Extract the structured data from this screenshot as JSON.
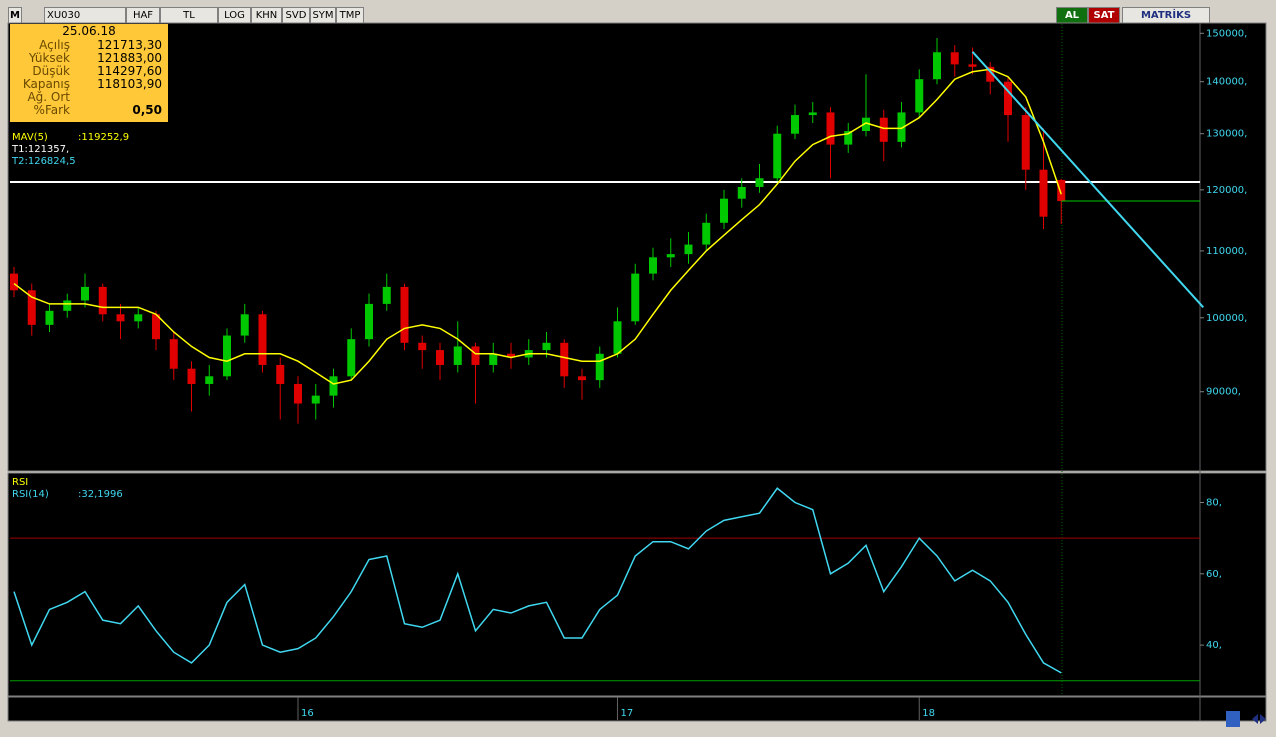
{
  "toolbar": {
    "logo": "M",
    "symbol": "XU030",
    "buttons": [
      "HAF",
      "TL",
      "LOG",
      "KHN",
      "SVD",
      "SYM",
      "TMP"
    ],
    "buy": "AL",
    "sell": "SAT",
    "brand": "MATRİKS"
  },
  "info_box": {
    "date": "25.06.18",
    "rows": [
      {
        "label": "Açılış",
        "value": "121713,30"
      },
      {
        "label": "Yüksek",
        "value": "121883,00"
      },
      {
        "label": "Düşük",
        "value": "114297,60"
      },
      {
        "label": "Kapanış",
        "value": "118103,90"
      },
      {
        "label": "Ağ. Ort"
      },
      {
        "label": "%Fark",
        "value": "0,50"
      }
    ]
  },
  "chart_data": [
    {
      "type": "candlestick",
      "log_scale": true,
      "ylim": [
        80500,
        152000
      ],
      "yticks": [
        {
          "value": 90000,
          "label": "90000,"
        },
        {
          "value": 100000,
          "label": "100000,"
        },
        {
          "value": 110000,
          "label": "110000,"
        },
        {
          "value": 120000,
          "label": "120000,"
        },
        {
          "value": 130000,
          "label": "130000,"
        },
        {
          "value": 140000,
          "label": "140000,"
        },
        {
          "value": 150000,
          "label": "150000,"
        }
      ],
      "categories": [
        null,
        null,
        null,
        null,
        null,
        null,
        null,
        null,
        null,
        null,
        null,
        null,
        null,
        null,
        null,
        null,
        "16",
        null,
        null,
        null,
        null,
        null,
        null,
        null,
        null,
        null,
        null,
        null,
        null,
        null,
        null,
        null,
        null,
        null,
        "17",
        null,
        null,
        null,
        null,
        null,
        null,
        null,
        null,
        null,
        null,
        null,
        null,
        null,
        null,
        null,
        null,
        "18",
        null,
        null,
        null,
        null,
        null,
        null,
        null,
        null
      ],
      "open": [
        106500,
        104000,
        99000,
        101000,
        102500,
        104500,
        100500,
        99500,
        100500,
        97000,
        93000,
        91000,
        92000,
        97500,
        100500,
        93500,
        91000,
        88500,
        89500,
        92000,
        97000,
        102000,
        104500,
        96500,
        95500,
        93500,
        96000,
        93500,
        95000,
        94500,
        95500,
        96500,
        92000,
        91500,
        95000,
        99500,
        106500,
        109000,
        109500,
        111000,
        114500,
        118500,
        120500,
        122000,
        130000,
        133500,
        134000,
        128000,
        130500,
        133000,
        128500,
        134000,
        140500,
        146000,
        143500,
        143000,
        140000,
        133500,
        123500,
        121713.3
      ],
      "high": [
        107500,
        105000,
        102000,
        103500,
        106500,
        105000,
        102000,
        101500,
        101000,
        98000,
        94000,
        93500,
        98500,
        102000,
        101000,
        94500,
        92000,
        91000,
        93000,
        98500,
        103500,
        106500,
        105000,
        97500,
        96500,
        99500,
        96500,
        96500,
        96500,
        97000,
        98000,
        97000,
        93000,
        96000,
        101500,
        108000,
        110500,
        112000,
        113000,
        116000,
        120000,
        122000,
        124500,
        131500,
        135500,
        136000,
        135000,
        132000,
        141500,
        134500,
        136000,
        142500,
        149000,
        147500,
        147000,
        144000,
        141000,
        135000,
        131000,
        121883
      ],
      "low": [
        103000,
        97500,
        98000,
        100000,
        101500,
        99500,
        97000,
        98500,
        95500,
        91500,
        87500,
        89500,
        91500,
        96500,
        92500,
        86500,
        86000,
        86500,
        88000,
        91500,
        96000,
        101000,
        95500,
        93000,
        91500,
        92500,
        88500,
        92500,
        93000,
        93500,
        94500,
        90500,
        89000,
        90500,
        94500,
        99000,
        105500,
        107500,
        108000,
        110000,
        113500,
        117000,
        119500,
        121500,
        129000,
        132000,
        122000,
        126500,
        129500,
        125000,
        127500,
        133000,
        139500,
        141000,
        141500,
        137500,
        128500,
        120000,
        113500,
        114297.6
      ],
      "close": [
        104000,
        99000,
        101000,
        102500,
        104500,
        100500,
        99500,
        100500,
        97000,
        93000,
        91000,
        92000,
        97500,
        100500,
        93500,
        91000,
        88500,
        89500,
        92000,
        97000,
        102000,
        104500,
        96500,
        95500,
        93500,
        96000,
        93500,
        95000,
        94500,
        95500,
        96500,
        92000,
        91500,
        95000,
        99500,
        106500,
        109000,
        109500,
        111000,
        114500,
        118500,
        120500,
        122000,
        130000,
        133500,
        134000,
        128000,
        130500,
        133000,
        128500,
        134000,
        140500,
        146000,
        143500,
        143000,
        140000,
        133500,
        123500,
        115500,
        118103.9
      ],
      "up_color": "#00c800",
      "down_color": "#e00000",
      "series": [
        {
          "name": "MAV(5)",
          "readout": ":119252,9",
          "color": "#ffff00",
          "values": [
            105000,
            103000,
            102000,
            102000,
            102000,
            101500,
            101500,
            101500,
            100500,
            98000,
            96000,
            94500,
            94000,
            95000,
            95000,
            95000,
            94000,
            92500,
            91000,
            91500,
            94000,
            97000,
            98500,
            99000,
            98500,
            97000,
            95000,
            95000,
            94500,
            95000,
            95000,
            94500,
            94000,
            94000,
            95000,
            97000,
            100500,
            104000,
            107000,
            110000,
            112500,
            115000,
            117500,
            121000,
            125000,
            128000,
            129500,
            130000,
            132000,
            131000,
            131000,
            133000,
            136500,
            140500,
            142000,
            142500,
            141000,
            137000,
            128500,
            119252.9
          ]
        }
      ],
      "hlines": [
        {
          "name": "T1:121357,",
          "value": 121357,
          "color": "#ffffff"
        }
      ],
      "trendline": {
        "name": "T2:126824,5",
        "color": "#40d8f0",
        "x": [
          54,
          67
        ],
        "values": [
          146100,
          101500
        ]
      }
    },
    {
      "type": "line",
      "title": "RSI",
      "ylim": [
        26,
        88
      ],
      "yticks": [
        {
          "value": 40,
          "label": "40,"
        },
        {
          "value": 60,
          "label": "60,"
        },
        {
          "value": 80,
          "label": "80,"
        }
      ],
      "series": [
        {
          "name": "RSI(14)",
          "readout": ":32,1996",
          "color": "#40d8f0",
          "values": [
            55,
            40,
            50,
            52,
            55,
            47,
            46,
            51,
            44,
            38,
            35,
            40,
            52,
            57,
            40,
            38,
            39,
            42,
            48,
            55,
            64,
            65,
            46,
            45,
            47,
            60,
            44,
            50,
            49,
            51,
            52,
            42,
            42,
            50,
            54,
            65,
            69,
            69,
            67,
            72,
            75,
            76,
            77,
            84,
            80,
            78,
            60,
            63,
            68,
            55,
            62,
            70,
            65,
            58,
            61,
            58,
            52,
            43,
            35,
            32.2
          ]
        }
      ],
      "hlines": [
        {
          "value": 70,
          "color": "#a00000"
        },
        {
          "value": 30,
          "color": "#00a000"
        }
      ]
    }
  ]
}
